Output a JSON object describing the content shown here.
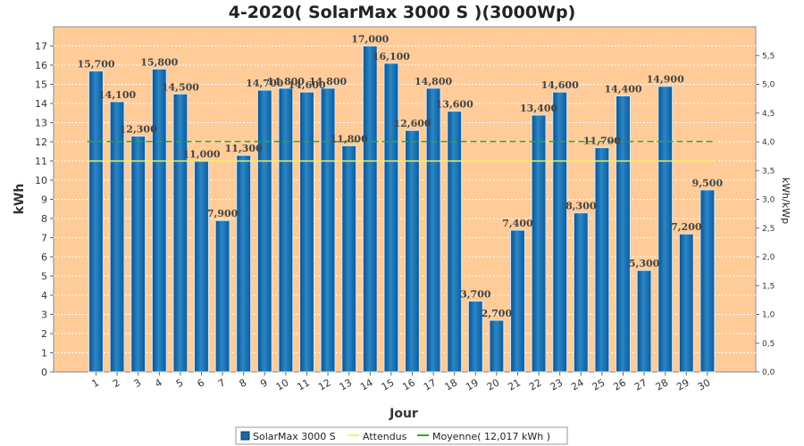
{
  "chart_data": {
    "type": "bar",
    "title": "4-2020( SolarMax 3000 S )(3000Wp)",
    "xlabel": "Jour",
    "ylabel": "kWh",
    "y2label": "kWh/kWp",
    "categories": [
      "1",
      "2",
      "3",
      "4",
      "5",
      "6",
      "7",
      "8",
      "9",
      "10",
      "11",
      "12",
      "13",
      "14",
      "15",
      "16",
      "17",
      "18",
      "19",
      "20",
      "21",
      "22",
      "23",
      "24",
      "25",
      "26",
      "27",
      "28",
      "29",
      "30"
    ],
    "series": [
      {
        "name": "SolarMax 3000 S",
        "values": [
          15.7,
          14.1,
          12.3,
          15.8,
          14.5,
          11.0,
          7.9,
          11.3,
          14.7,
          14.8,
          14.6,
          14.8,
          11.8,
          17.0,
          16.1,
          12.6,
          14.8,
          13.6,
          3.7,
          2.7,
          7.4,
          13.4,
          14.6,
          8.3,
          11.7,
          14.4,
          5.3,
          14.9,
          7.2,
          9.5
        ],
        "labels": [
          "15,700",
          "14,100",
          "12,300",
          "15,800",
          "14,500",
          "11,000",
          "7,900",
          "11,300",
          "14,700",
          "14,800",
          "14,600",
          "14,800",
          "11,800",
          "17,000",
          "16,100",
          "12,600",
          "14,800",
          "13,600",
          "3,700",
          "2,700",
          "7,400",
          "13,400",
          "14,600",
          "8,300",
          "11,700",
          "14,400",
          "5,300",
          "14,900",
          "7,200",
          "9,500"
        ],
        "color": "#1a6aa8"
      }
    ],
    "lines": [
      {
        "name": "Attendus",
        "value": 11.0,
        "color": "#f2f26a"
      },
      {
        "name": "Moyenne( 12,017 kWh )",
        "value": 12.017,
        "color": "#2aaa2a",
        "dashed": true
      }
    ],
    "ylim": [
      0,
      18
    ],
    "y_ticks": [
      "0",
      "1",
      "2",
      "3",
      "4",
      "5",
      "6",
      "7",
      "8",
      "9",
      "10",
      "11",
      "12",
      "13",
      "14",
      "15",
      "16",
      "17"
    ],
    "y2lim": [
      0,
      6
    ],
    "y2_ticks": [
      "0,0",
      "0,5",
      "1,0",
      "1,5",
      "2,0",
      "2,5",
      "3,0",
      "3,5",
      "4,0",
      "4,5",
      "5,0",
      "5,5"
    ],
    "grid": true,
    "plot_background": "#ffcc99",
    "legend_position": "bottom-center",
    "legend": [
      "SolarMax 3000 S",
      "Attendus",
      "Moyenne( 12,017 kWh )"
    ]
  }
}
